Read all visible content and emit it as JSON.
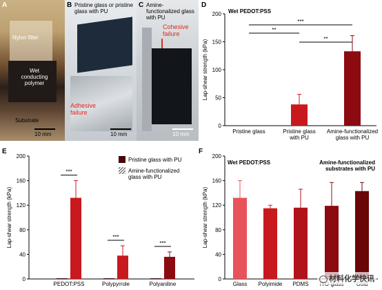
{
  "panel_letters": {
    "a": "A",
    "b": "B",
    "c": "C",
    "d": "D",
    "e": "E",
    "f": "F"
  },
  "photos": {
    "a": {
      "nylon": "Nylon filter",
      "wet": "Wet conducting polymer",
      "substrate": "Substrate",
      "scale": "10 mm"
    },
    "b": {
      "title": "Pristine glass or pristine glass with PU",
      "failure": "Adhesive failure",
      "scale": "10 mm"
    },
    "c": {
      "title": "Amine-functionalized glass with PU",
      "failure": "Cohesive failure",
      "scale": "10 mm"
    }
  },
  "watermark": "材料化学快讯",
  "colors": {
    "red": "#c8191e",
    "darkred": "#8b0b11",
    "maroon": "#6a0608",
    "pink": "#e8525a",
    "crimson": "#b1131a",
    "dark": "#4a0507",
    "black": "#2a1a1a"
  },
  "chart_data": [
    {
      "id": "D",
      "type": "bar",
      "title": "Wet PEDOT:PSS",
      "ylabel": "Lap-shear strength (kPa)",
      "ylim": [
        0,
        200
      ],
      "yticks": [
        0,
        50,
        100,
        150,
        200
      ],
      "categories": [
        "Pristine glass",
        "Pristine glass with PU",
        "Amine-functionalized glass with PU"
      ],
      "values": [
        0,
        38,
        133
      ],
      "errors": [
        0,
        18,
        28
      ],
      "significance": [
        {
          "from": 0,
          "to": 2,
          "label": "***"
        },
        {
          "from": 0,
          "to": 1,
          "label": "**"
        },
        {
          "from": 1,
          "to": 2,
          "label": "**"
        }
      ]
    },
    {
      "id": "E",
      "type": "bar",
      "ylabel": "Lap-shear strength (kPa)",
      "ylim": [
        0,
        200
      ],
      "yticks": [
        0,
        40,
        80,
        120,
        160,
        200
      ],
      "categories": [
        "PEDOT:PSS",
        "Polypyrrole",
        "Polyaniline"
      ],
      "legend": [
        "Pristine glass with PU",
        "Amine-functionalized glass with PU"
      ],
      "series": [
        {
          "name": "Pristine glass with PU",
          "values": [
            0,
            0,
            0
          ]
        },
        {
          "name": "Amine-functionalized glass with PU",
          "values": [
            132,
            38,
            36
          ]
        }
      ],
      "errors": [
        [
          0,
          0,
          0
        ],
        [
          28,
          16,
          8
        ]
      ],
      "significance": [
        "***",
        "***",
        "***"
      ]
    },
    {
      "id": "F",
      "type": "bar",
      "title": "Wet PEDOT:PSS",
      "subtitle": "Amine-functionalized substrates with PU",
      "ylabel": "Lap-shear strength (kPa)",
      "ylim": [
        0,
        200
      ],
      "yticks": [
        0,
        40,
        80,
        120,
        160,
        200
      ],
      "categories": [
        "Glass",
        "Polyimide",
        "PDMS",
        "ITO-glass",
        "Gold"
      ],
      "values": [
        132,
        115,
        116,
        119,
        143
      ],
      "errors": [
        28,
        5,
        30,
        38,
        14
      ]
    }
  ]
}
